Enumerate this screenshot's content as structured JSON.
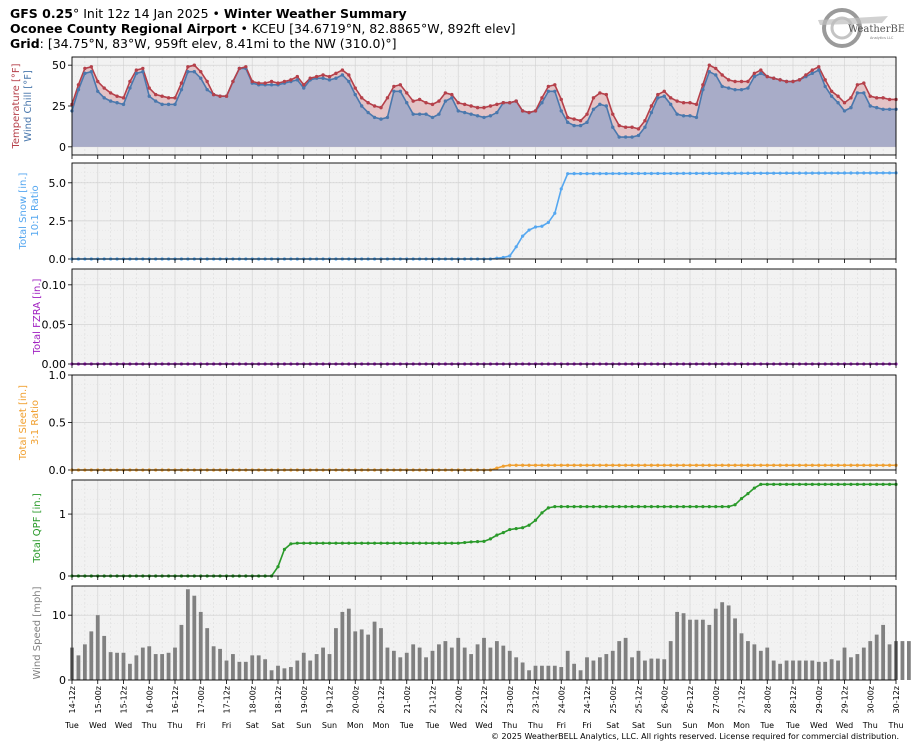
{
  "header": {
    "line1_model": "GFS 0.25",
    "line1_init": "° Init 12z 14 Jan 2025 •",
    "line1_title": "Winter Weather Summary",
    "line2_place": "Oconee County Regional Airport",
    "line2_rest": "• KCEU [34.6719°N, 82.8865°W, 892ft elev]",
    "line3_label": "Grid",
    "line3_rest": ": [34.75°N, 83°W, 959ft elev, 8.41mi to the NW (310.0)°]"
  },
  "logo": {
    "text": "WeatherBELL",
    "sub": "Analytics LLC"
  },
  "footer": {
    "copyright": "© 2025 WeatherBELL Analytics, LLC. All rights reserved. License required for commercial distribution."
  },
  "colors": {
    "temp": "#b5404a",
    "chill": "#4a78ad",
    "snow": "#55a7f0",
    "fzra": "#a020c0",
    "sleet": "#f0a030",
    "qpf": "#2a9a2a",
    "wind": "#808080",
    "tempFill": "#e3c3c6",
    "chillFill": "#a8acc8",
    "grid": "#d8d8d8",
    "panelBg": "#f2f2f2"
  },
  "x_tick_labels": [
    "14-12z",
    "15-00z",
    "15-12z",
    "16-00z",
    "16-12z",
    "17-00z",
    "17-12z",
    "18-00z",
    "18-12z",
    "19-00z",
    "19-12z",
    "20-00z",
    "20-12z",
    "21-00z",
    "21-12z",
    "22-00z",
    "22-12z",
    "23-00z",
    "23-12z",
    "24-00z",
    "24-12z",
    "25-00z",
    "25-12z",
    "26-00z",
    "26-12z",
    "27-00z",
    "27-12z",
    "28-00z",
    "28-12z",
    "29-00z",
    "29-12z",
    "30-00z",
    "30-12z"
  ],
  "day_labels": [
    "Tue",
    "Wed",
    "Wed",
    "Thu",
    "Thu",
    "Fri",
    "Fri",
    "Sat",
    "Sat",
    "Sun",
    "Sun",
    "Mon",
    "Mon",
    "Tue",
    "Tue",
    "Wed",
    "Wed",
    "Thu",
    "Thu",
    "Fri",
    "Fri",
    "Sat",
    "Sat",
    "Sun",
    "Sun",
    "Mon",
    "Mon",
    "Tue",
    "Tue",
    "Wed",
    "Wed",
    "Thu",
    "Thu"
  ],
  "chart_data": [
    {
      "type": "line",
      "ylabel": "Temperature [°F]",
      "ylabel2": "Wind Chill [°F]",
      "ylim": [
        -5,
        55
      ],
      "yticks": [
        0,
        25,
        50
      ],
      "x_hours": [
        0,
        3,
        6,
        9,
        12,
        15,
        18,
        21,
        24,
        27,
        30,
        33,
        36,
        39,
        42,
        45,
        48,
        51,
        54,
        57,
        60,
        63,
        66,
        69,
        72,
        75,
        78,
        81,
        84,
        87,
        90,
        93,
        96,
        99,
        102,
        105,
        108,
        111,
        114,
        117,
        120,
        123,
        126,
        129,
        132,
        135,
        138,
        141,
        144,
        147,
        150,
        153,
        156,
        159,
        162,
        165,
        168,
        171,
        174,
        177,
        180,
        183,
        186,
        189,
        192,
        195,
        198,
        201,
        204,
        207,
        210,
        213,
        216,
        219,
        222,
        225,
        228,
        231,
        234,
        237,
        240,
        243,
        246,
        249,
        252,
        255,
        258,
        261,
        264,
        267,
        270,
        273,
        276,
        279,
        282,
        285,
        288,
        291,
        294,
        297,
        300,
        303,
        306,
        309,
        312,
        315,
        318,
        321,
        324,
        327,
        330,
        333,
        336,
        339,
        342,
        345,
        348,
        351,
        354,
        357,
        360,
        363,
        366,
        369,
        372,
        375,
        378,
        381,
        384
      ],
      "series": [
        {
          "name": "Temperature",
          "values": [
            26,
            38,
            48,
            49,
            40,
            36,
            33,
            31,
            30,
            40,
            47,
            48,
            36,
            32,
            31,
            30,
            30,
            39,
            49,
            50,
            46,
            40,
            32,
            31,
            31,
            40,
            48,
            49,
            40,
            39,
            39,
            40,
            39,
            40,
            41,
            43,
            38,
            42,
            43,
            44,
            43,
            45,
            47,
            44,
            36,
            30,
            27,
            25,
            24,
            30,
            37,
            38,
            33,
            28,
            29,
            27,
            26,
            28,
            33,
            32,
            27,
            26,
            25,
            24,
            24,
            25,
            26,
            27,
            27,
            28,
            22,
            21,
            22,
            30,
            37,
            38,
            29,
            18,
            17,
            16,
            20,
            30,
            33,
            32,
            20,
            13,
            12,
            12,
            11,
            16,
            25,
            32,
            34,
            30,
            28,
            27,
            27,
            26,
            38,
            50,
            48,
            44,
            41,
            40,
            40,
            40,
            45,
            47,
            43,
            42,
            41,
            40,
            40,
            41,
            44,
            47,
            49,
            41,
            34,
            31,
            27,
            30,
            38,
            39,
            31,
            30,
            30,
            29,
            29
          ]
        },
        {
          "name": "Wind Chill",
          "values": [
            22,
            35,
            45,
            46,
            34,
            30,
            28,
            27,
            26,
            36,
            45,
            46,
            31,
            28,
            26,
            26,
            26,
            35,
            46,
            46,
            42,
            35,
            32,
            31,
            31,
            40,
            48,
            48,
            39,
            38,
            38,
            38,
            38,
            39,
            40,
            41,
            36,
            41,
            42,
            42,
            41,
            42,
            44,
            40,
            32,
            25,
            21,
            18,
            17,
            18,
            34,
            34,
            27,
            20,
            20,
            20,
            18,
            20,
            28,
            30,
            22,
            21,
            20,
            19,
            18,
            19,
            21,
            27,
            27,
            28,
            22,
            21,
            22,
            27,
            34,
            34,
            22,
            15,
            13,
            13,
            15,
            23,
            26,
            25,
            12,
            6,
            6,
            6,
            7,
            12,
            21,
            30,
            31,
            26,
            20,
            19,
            19,
            18,
            35,
            46,
            44,
            37,
            36,
            35,
            35,
            36,
            43,
            45,
            43,
            42,
            41,
            40,
            40,
            41,
            43,
            45,
            47,
            37,
            31,
            27,
            22,
            24,
            33,
            33,
            25,
            24,
            23,
            23,
            23
          ]
        }
      ]
    },
    {
      "type": "line",
      "ylabel": "Total Snow [in.]",
      "ylabel2": "10:1 Ratio",
      "ylim": [
        0,
        6.3
      ],
      "yticks": [
        0.0,
        2.5,
        5.0
      ],
      "ytick_labels": [
        "0.0",
        "2.5",
        "5.0"
      ],
      "series": [
        {
          "name": "Total Snow",
          "points": [
            [
              0,
              0
            ],
            [
              195,
              0
            ],
            [
              198,
              0.05
            ],
            [
              201,
              0.1
            ],
            [
              204,
              0.2
            ],
            [
              207,
              0.8
            ],
            [
              210,
              1.5
            ],
            [
              213,
              1.9
            ],
            [
              216,
              2.1
            ],
            [
              219,
              2.15
            ],
            [
              222,
              2.4
            ],
            [
              225,
              3.0
            ],
            [
              228,
              4.6
            ],
            [
              231,
              5.6
            ],
            [
              384,
              5.65
            ]
          ]
        }
      ]
    },
    {
      "type": "line",
      "ylabel": "Total FZRA [in.]",
      "ylim": [
        0,
        0.12
      ],
      "yticks": [
        0.0,
        0.05,
        0.1
      ],
      "ytick_labels": [
        "0.00",
        "0.05",
        "0.10"
      ],
      "series": [
        {
          "name": "Total FZRA",
          "points": [
            [
              0,
              0
            ],
            [
              384,
              0
            ]
          ]
        }
      ]
    },
    {
      "type": "line",
      "ylabel": "Total Sleet [in.]",
      "ylabel2": "3:1 Ratio",
      "ylim": [
        0,
        1.0
      ],
      "yticks": [
        0.0,
        0.5,
        1.0
      ],
      "ytick_labels": [
        "0.0",
        "0.5",
        "1.0"
      ],
      "series": [
        {
          "name": "Total Sleet",
          "points": [
            [
              0,
              0
            ],
            [
              195,
              0
            ],
            [
              198,
              0.02
            ],
            [
              201,
              0.04
            ],
            [
              204,
              0.05
            ],
            [
              384,
              0.05
            ]
          ]
        }
      ]
    },
    {
      "type": "line",
      "ylabel": "Total QPF [in.]",
      "ylim": [
        0,
        1.55
      ],
      "yticks": [
        0,
        1
      ],
      "ytick_labels": [
        "0",
        "1"
      ],
      "series": [
        {
          "name": "Total QPF",
          "points": [
            [
              0,
              0
            ],
            [
              93,
              0
            ],
            [
              96,
              0.15
            ],
            [
              99,
              0.43
            ],
            [
              102,
              0.52
            ],
            [
              105,
              0.53
            ],
            [
              180,
              0.53
            ],
            [
              186,
              0.55
            ],
            [
              192,
              0.56
            ],
            [
              195,
              0.6
            ],
            [
              198,
              0.66
            ],
            [
              201,
              0.7
            ],
            [
              204,
              0.75
            ],
            [
              210,
              0.78
            ],
            [
              213,
              0.82
            ],
            [
              216,
              0.9
            ],
            [
              219,
              1.02
            ],
            [
              222,
              1.1
            ],
            [
              225,
              1.12
            ],
            [
              306,
              1.12
            ],
            [
              309,
              1.15
            ],
            [
              312,
              1.25
            ],
            [
              315,
              1.33
            ],
            [
              318,
              1.42
            ],
            [
              321,
              1.48
            ],
            [
              384,
              1.48
            ]
          ]
        }
      ]
    },
    {
      "type": "bar",
      "ylabel": "Wind Speed [mph]",
      "ylim": [
        0,
        14.5
      ],
      "yticks": [
        0,
        10
      ],
      "ytick_labels": [
        "0",
        "10"
      ],
      "series": [
        {
          "name": "Wind Speed",
          "values": [
            5,
            3.8,
            5.5,
            7.5,
            10,
            6.8,
            4.3,
            4.2,
            4.2,
            2.5,
            3.8,
            5,
            5.2,
            4,
            4,
            4.2,
            5,
            8.5,
            14,
            13,
            10.5,
            8,
            5.2,
            4.8,
            3,
            4,
            2.8,
            2.8,
            3.8,
            3.8,
            3.2,
            1.5,
            2.2,
            1.8,
            2,
            3,
            4.2,
            3,
            4,
            5,
            4,
            8,
            10.5,
            11,
            7.5,
            7.8,
            7,
            9,
            8,
            5,
            4.5,
            3.5,
            4.2,
            5.5,
            5,
            3.5,
            4.5,
            5.5,
            6,
            5,
            6.5,
            5,
            4,
            5.5,
            6.5,
            5,
            6,
            5.3,
            4.5,
            3.5,
            2.7,
            1.5,
            2.2,
            2.2,
            2.2,
            2.2,
            2,
            4.5,
            2.5,
            1.5,
            3.5,
            3,
            3.5,
            4,
            4.5,
            6,
            6.5,
            3.5,
            4.5,
            3,
            3.3,
            3.3,
            3.2,
            6,
            10.5,
            10.3,
            9.3,
            9.3,
            9.3,
            8.5,
            11,
            12,
            11.5,
            9.5,
            7.2,
            6,
            5.5,
            4.5,
            5,
            3,
            2.5,
            3,
            3,
            3,
            3,
            3,
            2.8,
            2.8,
            3.2,
            3,
            5,
            3.5,
            4,
            5,
            6,
            7,
            8.5,
            5.5,
            6,
            6,
            6,
            5.5
          ]
        }
      ]
    }
  ]
}
